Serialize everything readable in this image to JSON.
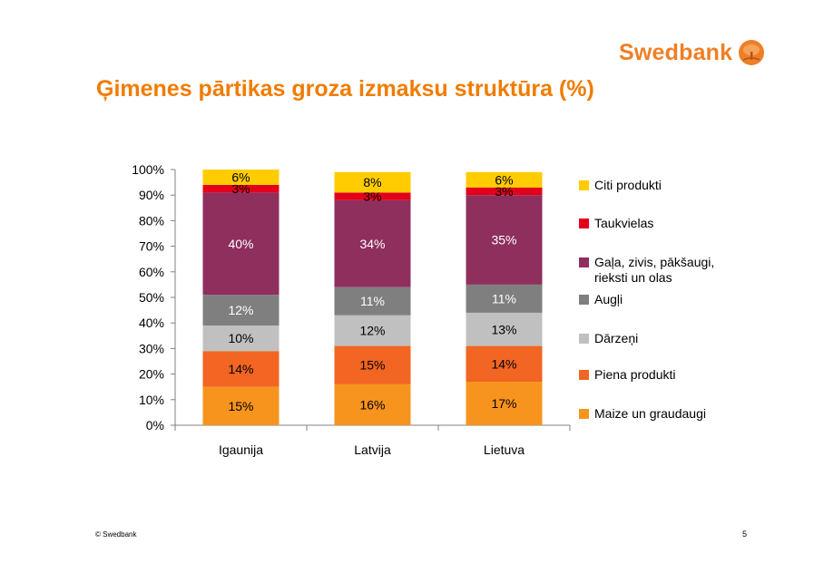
{
  "brand": {
    "name": "Swedbank",
    "color": "#ef7f26",
    "icon": "oak-tree-icon"
  },
  "title": "Ģimenes pārtikas groza izmaksu struktūra (%)",
  "footer": "© Swedbank",
  "page_number": "5",
  "chart_data": {
    "type": "bar",
    "stacked": true,
    "title": "",
    "xlabel": "",
    "ylabel": "",
    "ylim": [
      0,
      100
    ],
    "y_ticks": [
      "0%",
      "10%",
      "20%",
      "30%",
      "40%",
      "50%",
      "60%",
      "70%",
      "80%",
      "90%",
      "100%"
    ],
    "categories": [
      "Igaunija",
      "Latvija",
      "Lietuva"
    ],
    "legend_position": "right",
    "series": [
      {
        "name": "Maize un graudaugi",
        "color": "#f7941d",
        "values": [
          15,
          16,
          17
        ],
        "labels": [
          "15%",
          "16%",
          "17%"
        ],
        "label_color": "#000000"
      },
      {
        "name": "Piena produkti",
        "color": "#f26522",
        "values": [
          14,
          15,
          14
        ],
        "labels": [
          "14%",
          "15%",
          "14%"
        ],
        "label_color": "#000000"
      },
      {
        "name": "Dārzeņi",
        "color": "#c0c0c0",
        "values": [
          10,
          12,
          13
        ],
        "labels": [
          "10%",
          "12%",
          "13%"
        ],
        "label_color": "#000000"
      },
      {
        "name": "Augļi",
        "color": "#7f7f7f",
        "values": [
          12,
          11,
          11
        ],
        "labels": [
          "12%",
          "11%",
          "11%"
        ],
        "label_color": "#ffffff"
      },
      {
        "name": "Gaļa, zivis, pākšaugi, rieksti un olas",
        "color": "#8e2f5e",
        "values": [
          40,
          34,
          35
        ],
        "labels": [
          "40%",
          "34%",
          "35%"
        ],
        "label_color": "#ffffff"
      },
      {
        "name": "Taukvielas",
        "color": "#e3001b",
        "values": [
          3,
          3,
          3
        ],
        "labels": [
          "3%",
          "3%",
          "3%"
        ],
        "label_color": "#000000"
      },
      {
        "name": "Citi produkti",
        "color": "#ffcc00",
        "values": [
          6,
          8,
          6
        ],
        "labels": [
          "6%",
          "8%",
          "6%"
        ],
        "label_color": "#000000"
      }
    ],
    "legend_order": [
      "Citi produkti",
      "Taukvielas",
      "Gaļa, zivis, pākšaugi, rieksti un olas",
      "Augļi",
      "Dārzeņi",
      "Piena produkti",
      "Maize un graudaugi"
    ]
  }
}
